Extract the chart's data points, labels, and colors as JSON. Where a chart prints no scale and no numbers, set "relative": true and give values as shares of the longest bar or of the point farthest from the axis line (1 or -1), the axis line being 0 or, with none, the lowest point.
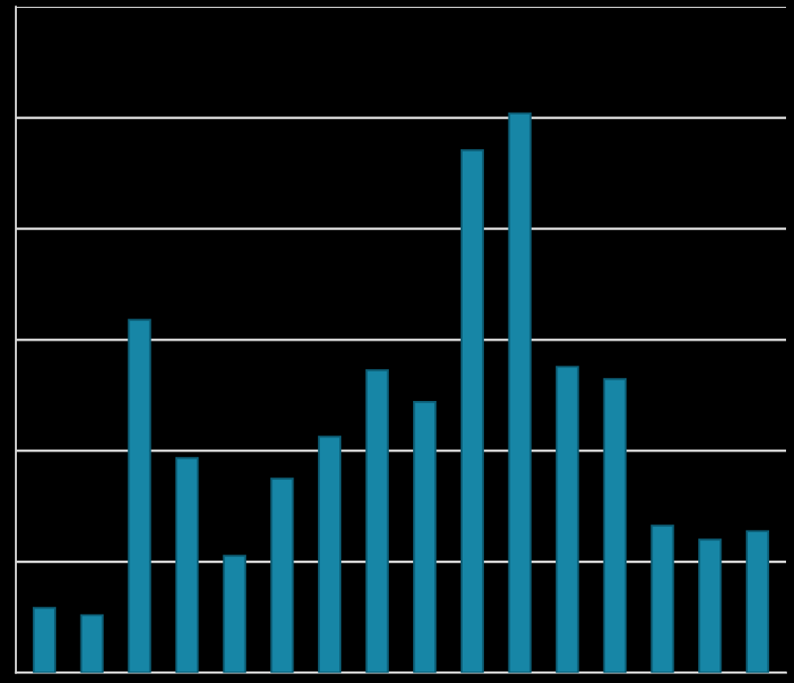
{
  "chart_data": {
    "type": "bar",
    "relative": true,
    "categories": [
      null,
      null,
      null,
      null,
      null,
      null,
      null,
      null,
      null,
      null,
      null,
      null,
      null,
      null,
      null,
      null
    ],
    "values": [
      0.116,
      0.103,
      0.631,
      0.384,
      0.209,
      0.347,
      0.422,
      0.541,
      0.484,
      0.934,
      1.0,
      0.547,
      0.525,
      0.263,
      0.238,
      0.253
    ],
    "color": "#1786a6",
    "grid": "y"
  }
}
